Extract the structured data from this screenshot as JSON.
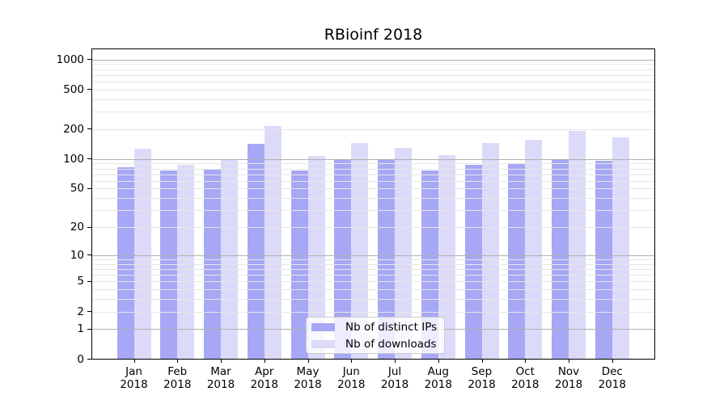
{
  "colors": {
    "bar_ips": "#a7a7f6",
    "bar_downloads": "#dbdbf9",
    "grid_major": "#b0b0b0",
    "grid_minor": "#e6e6e6",
    "spine": "#000000",
    "text": "#000000",
    "legend_border": "#cccccc",
    "legend_bg": "rgba(255,255,255,0.8)"
  },
  "chart_data": {
    "type": "bar",
    "title": "RBioinf 2018",
    "y_scale": "log10(1+x)",
    "ylim": [
      0,
      1290
    ],
    "yticks": [
      0,
      1,
      2,
      5,
      10,
      20,
      50,
      100,
      200,
      500,
      1000
    ],
    "grid_major_values": [
      1,
      10,
      100,
      1000
    ],
    "grid_minor_values": [
      2,
      3,
      4,
      5,
      6,
      7,
      8,
      9,
      20,
      30,
      40,
      50,
      60,
      70,
      80,
      90,
      200,
      300,
      400,
      500,
      600,
      700,
      800,
      900
    ],
    "grid": "horizontal",
    "legend_position": "lower center inside plot",
    "categories": [
      {
        "month": "Jan",
        "year": "2018"
      },
      {
        "month": "Feb",
        "year": "2018"
      },
      {
        "month": "Mar",
        "year": "2018"
      },
      {
        "month": "Apr",
        "year": "2018"
      },
      {
        "month": "May",
        "year": "2018"
      },
      {
        "month": "Jun",
        "year": "2018"
      },
      {
        "month": "Jul",
        "year": "2018"
      },
      {
        "month": "Aug",
        "year": "2018"
      },
      {
        "month": "Sep",
        "year": "2018"
      },
      {
        "month": "Oct",
        "year": "2018"
      },
      {
        "month": "Nov",
        "year": "2018"
      },
      {
        "month": "Dec",
        "year": "2018"
      }
    ],
    "series": [
      {
        "name": "Nb of distinct IPs",
        "color": "#a7a7f6",
        "values": [
          82,
          77,
          78,
          143,
          77,
          98,
          98,
          76,
          88,
          89,
          99,
          96
        ]
      },
      {
        "name": "Nb of downloads",
        "color": "#dbdbf9",
        "values": [
          128,
          87,
          98,
          213,
          108,
          145,
          130,
          110,
          145,
          156,
          193,
          164
        ]
      }
    ]
  }
}
